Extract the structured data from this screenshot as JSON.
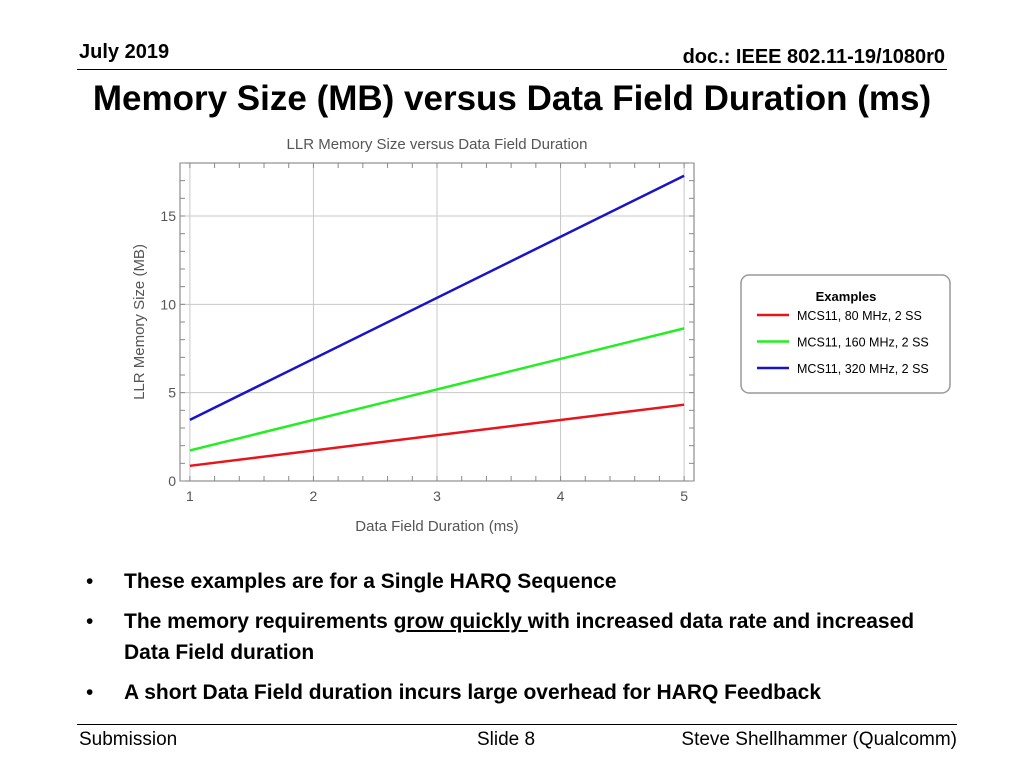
{
  "header": {
    "date": "July 2019",
    "doc": "doc.: IEEE 802.11-19/1080r0"
  },
  "slide_title": "Memory Size (MB) versus Data Field Duration (ms)",
  "chart_data": {
    "type": "line",
    "title": "LLR Memory Size versus Data Field Duration",
    "xlabel": "Data Field Duration (ms)",
    "ylabel": "LLR Memory Size (MB)",
    "xlim": [
      0.92,
      5.08
    ],
    "ylim": [
      0,
      18.0
    ],
    "xticks": [
      1,
      2,
      3,
      4,
      5
    ],
    "yticks": [
      0,
      5,
      10,
      15
    ],
    "grid": true,
    "legend_title": "Examples",
    "legend_position": "right",
    "series": [
      {
        "name": "MCS11, 80 MHz, 2 SS",
        "color": "#e8141b",
        "x": [
          1,
          5
        ],
        "y": [
          0.86,
          4.32
        ]
      },
      {
        "name": "MCS11, 160 MHz, 2 SS",
        "color": "#22ee22",
        "x": [
          1,
          5
        ],
        "y": [
          1.73,
          8.64
        ]
      },
      {
        "name": "MCS11, 320 MHz, 2 SS",
        "color": "#1a14c8",
        "x": [
          1,
          5
        ],
        "y": [
          3.46,
          17.28
        ]
      }
    ]
  },
  "bullets": [
    {
      "parts": [
        {
          "text": "These examples are for a Single HARQ Sequence",
          "underline": false
        }
      ]
    },
    {
      "parts": [
        {
          "text": "The memory requirements ",
          "underline": false
        },
        {
          "text": "grow quickly ",
          "underline": true
        },
        {
          "text": "with increased data rate and increased Data Field duration",
          "underline": false
        }
      ]
    },
    {
      "parts": [
        {
          "text": "A short Data Field duration incurs large overhead for HARQ Feedback",
          "underline": false
        }
      ]
    }
  ],
  "footer": {
    "left": "Submission",
    "center": "Slide 8",
    "right": "Steve Shellhammer (Qualcomm)"
  }
}
